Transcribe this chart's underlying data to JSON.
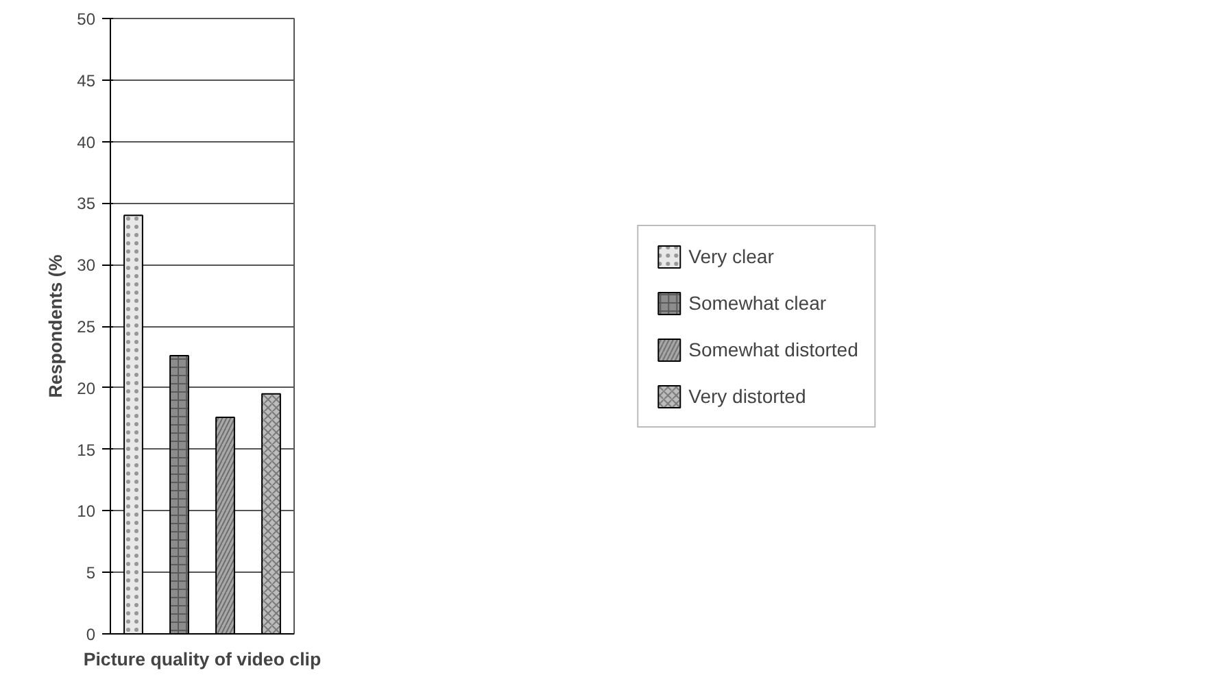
{
  "chart_data": {
    "type": "bar",
    "xlabel": "Picture quality of video clip",
    "ylabel": "Respondents (%",
    "categories": [
      null,
      null,
      null,
      null
    ],
    "series": [
      {
        "name": "Very clear",
        "color": "#e8e8e8",
        "values": [
          34,
          null,
          null,
          null
        ]
      },
      {
        "name": "Somewhat clear",
        "color": "#8c8c8c",
        "values": [
          null,
          22.6,
          null,
          null
        ]
      },
      {
        "name": "Somewhat distorted",
        "color": "#a8a8a8",
        "values": [
          null,
          null,
          17.6,
          null
        ]
      },
      {
        "name": "Very distorted",
        "color": "#bcbcbc",
        "values": [
          null,
          null,
          null,
          19.5
        ]
      }
    ],
    "ylim": [
      0,
      50
    ],
    "yticks": [
      0,
      5,
      10,
      15,
      20,
      25,
      30,
      35,
      40,
      45,
      50
    ],
    "grid": "y",
    "legend": "right"
  }
}
